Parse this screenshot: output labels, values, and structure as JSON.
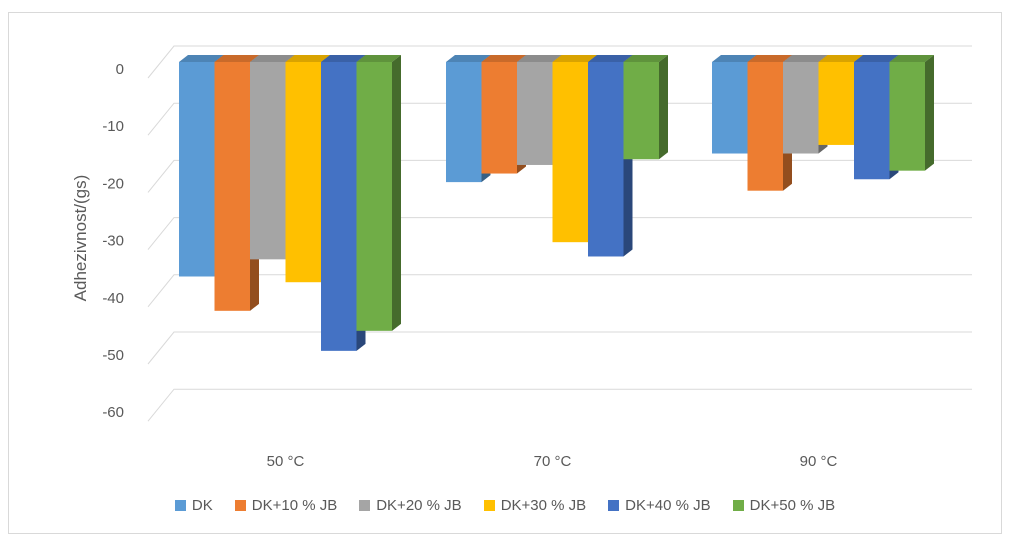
{
  "chart_data": {
    "type": "bar",
    "style": "3d-clustered-column",
    "categories": [
      "50 °C",
      "70 °C",
      "90 °C"
    ],
    "ylabel": "Adhezivnost/(gs)",
    "xlabel": "",
    "ylim": [
      -60,
      0
    ],
    "yticks": [
      "0",
      "-10",
      "-20",
      "-30",
      "-40",
      "-50",
      "-60"
    ],
    "grid": true,
    "legend_position": "bottom",
    "series": [
      {
        "name": "DK",
        "color": "#5b9bd5",
        "values": [
          -37.5,
          -21,
          -16
        ]
      },
      {
        "name": "DK+10 % JB",
        "color": "#ed7d31",
        "values": [
          -43.5,
          -19.5,
          -22.5
        ]
      },
      {
        "name": "DK+20 % JB",
        "color": "#a5a5a5",
        "values": [
          -34.5,
          -18,
          -16
        ]
      },
      {
        "name": "DK+30 % JB",
        "color": "#ffc000",
        "values": [
          -38.5,
          -31.5,
          -14.5
        ]
      },
      {
        "name": "DK+40 % JB",
        "color": "#4472c4",
        "values": [
          -50.5,
          -34,
          -20.5
        ]
      },
      {
        "name": "DK+50 % JB",
        "color": "#70ad47",
        "values": [
          -47,
          -17,
          -19
        ]
      }
    ]
  }
}
